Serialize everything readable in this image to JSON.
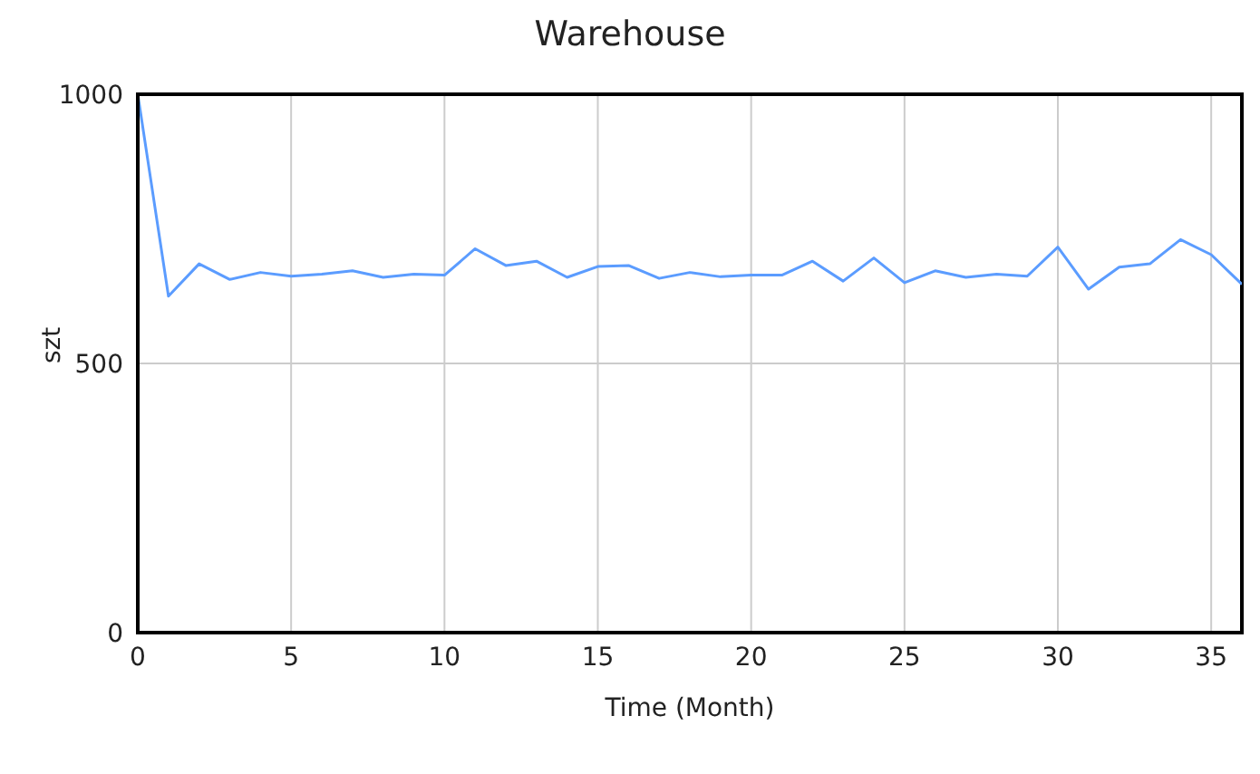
{
  "chart_data": {
    "type": "line",
    "title": "Warehouse",
    "xlabel": "Time (Month)",
    "ylabel": "szt",
    "x": [
      0,
      1,
      2,
      3,
      4,
      5,
      6,
      7,
      8,
      9,
      10,
      11,
      12,
      13,
      14,
      15,
      16,
      17,
      18,
      19,
      20,
      21,
      22,
      23,
      24,
      25,
      26,
      27,
      28,
      29,
      30,
      31,
      32,
      33,
      34,
      35,
      36
    ],
    "series": [
      {
        "color": "#5b9cff",
        "values": [
          1000,
          625,
          685,
          656,
          669,
          662,
          666,
          672,
          660,
          666,
          664,
          713,
          682,
          690,
          660,
          680,
          682,
          658,
          669,
          661,
          664,
          664,
          690,
          653,
          696,
          650,
          672,
          660,
          666,
          662,
          716,
          638,
          679,
          685,
          730,
          702,
          647
        ]
      }
    ],
    "xlim": [
      0,
      36
    ],
    "xticks": [
      0,
      5,
      10,
      15,
      20,
      25,
      30,
      35
    ],
    "ylim": [
      0,
      1000
    ],
    "yticks": [
      0,
      500,
      1000
    ],
    "grid": true,
    "marker": "none",
    "line_style": "solid"
  }
}
